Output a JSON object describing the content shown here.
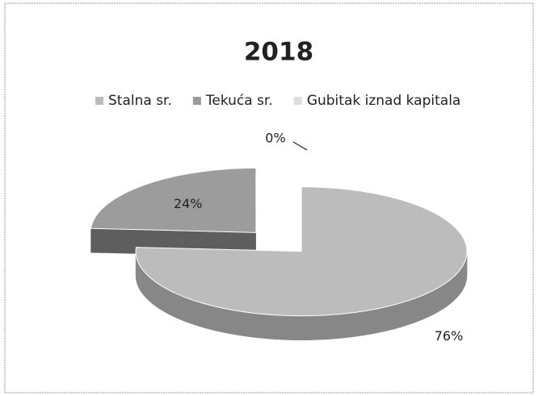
{
  "chart_data": {
    "type": "pie",
    "title": "2018",
    "categories": [
      "Stalna sr.",
      "Tekuća sr.",
      "Gubitak iznad kapitala"
    ],
    "values": [
      76,
      24,
      0
    ],
    "value_labels": [
      "76%",
      "24%",
      "0%"
    ],
    "colors": [
      "#bcbcbc",
      "#9c9c9c",
      "#dedede"
    ],
    "legend": "top"
  }
}
